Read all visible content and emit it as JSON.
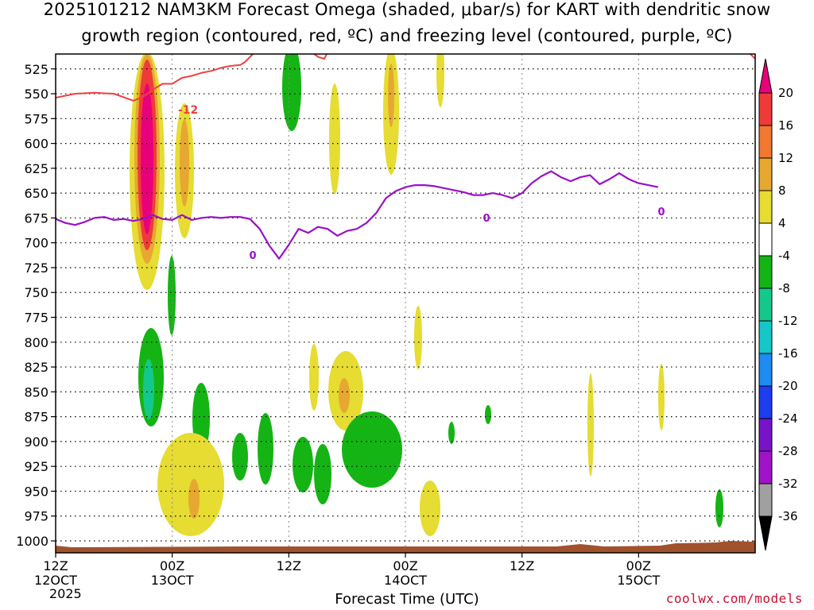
{
  "title_line1": "2025101212 NAM3KM Forecast Omega (shaded, μbar/s) for KART with dendritic snow",
  "title_line2": "growth region (contoured, red, ºC) and freezing level (contoured, purple, ºC)",
  "xlabel": "Forecast Time (UTC)",
  "credit": "coolwx.com/models",
  "year_label": "2025",
  "chart_data": {
    "type": "contour-time-height",
    "title": "2025101212 NAM3KM Forecast Omega (shaded, μbar/s) for KART with dendritic snow growth region (contoured, red, ºC) and freezing level (contoured, purple, ºC)",
    "xlabel": "Forecast Time (UTC)",
    "ylabel": "",
    "x_range_hours": [
      0,
      72
    ],
    "y_range_mb": [
      1012,
      510
    ],
    "y_ticks": [
      525,
      550,
      575,
      600,
      625,
      650,
      675,
      700,
      725,
      750,
      775,
      800,
      825,
      850,
      875,
      900,
      925,
      950,
      975,
      1000
    ],
    "x_ticks": [
      {
        "hour": 0,
        "line1": "12Z",
        "line2": "12OCT"
      },
      {
        "hour": 12,
        "line1": "00Z",
        "line2": "13OCT"
      },
      {
        "hour": 24,
        "line1": "12Z",
        "line2": ""
      },
      {
        "hour": 36,
        "line1": "00Z",
        "line2": "14OCT"
      },
      {
        "hour": 48,
        "line1": "12Z",
        "line2": ""
      },
      {
        "hour": 60,
        "line1": "00Z",
        "line2": "15OCT"
      }
    ],
    "colorbar": {
      "labels": [
        "20",
        "16",
        "12",
        "8",
        "4",
        "-4",
        "-8",
        "-12",
        "-16",
        "-20",
        "-24",
        "-28",
        "-32",
        "-36"
      ],
      "colors": [
        "#e8007a",
        "#f03a3a",
        "#f07830",
        "#e6a830",
        "#e6dc32",
        "#ffffff",
        "#14b414",
        "#14c88c",
        "#14c8c8",
        "#1e8cf0",
        "#1e3cf0",
        "#7814c8",
        "#a014c8",
        "#a0a0a0",
        "#000000"
      ]
    },
    "contour_labels": {
      "red": "-12",
      "purple": "0"
    },
    "freezing_level": [
      [
        0,
        676
      ],
      [
        1,
        680
      ],
      [
        2,
        682
      ],
      [
        3,
        679
      ],
      [
        4,
        675
      ],
      [
        5,
        674
      ],
      [
        6,
        677
      ],
      [
        7,
        676
      ],
      [
        8,
        678
      ],
      [
        9,
        676
      ],
      [
        10,
        672
      ],
      [
        11,
        676
      ],
      [
        12,
        677
      ],
      [
        13,
        672
      ],
      [
        14,
        677
      ],
      [
        15,
        675
      ],
      [
        16,
        674
      ],
      [
        17,
        675
      ],
      [
        18,
        674
      ],
      [
        19,
        674
      ],
      [
        20,
        676
      ],
      [
        21,
        686
      ],
      [
        22,
        703
      ],
      [
        23,
        716
      ],
      [
        24,
        702
      ],
      [
        25,
        686
      ],
      [
        26,
        690
      ],
      [
        27,
        684
      ],
      [
        28,
        686
      ],
      [
        29,
        693
      ],
      [
        30,
        688
      ],
      [
        31,
        686
      ],
      [
        32,
        680
      ],
      [
        33,
        670
      ],
      [
        34,
        655
      ],
      [
        35,
        648
      ],
      [
        36,
        644
      ],
      [
        37,
        642
      ],
      [
        38,
        642
      ],
      [
        39,
        643
      ],
      [
        40,
        645
      ],
      [
        41,
        647
      ],
      [
        42,
        649
      ],
      [
        43,
        652
      ],
      [
        44,
        652
      ],
      [
        45,
        650
      ],
      [
        46,
        652
      ],
      [
        47,
        655
      ],
      [
        48,
        650
      ],
      [
        49,
        640
      ],
      [
        50,
        633
      ],
      [
        51,
        628
      ],
      [
        52,
        634
      ],
      [
        53,
        638
      ],
      [
        54,
        634
      ],
      [
        55,
        632
      ],
      [
        56,
        641
      ],
      [
        57,
        636
      ],
      [
        58,
        630
      ],
      [
        59,
        636
      ],
      [
        60,
        640
      ],
      [
        61,
        642
      ],
      [
        62,
        644
      ]
    ],
    "dgz_minus12": [
      [
        0,
        554
      ],
      [
        2,
        550
      ],
      [
        4,
        549
      ],
      [
        6,
        550
      ],
      [
        8,
        557
      ],
      [
        9,
        553
      ],
      [
        10,
        546
      ],
      [
        11,
        540
      ],
      [
        12,
        540
      ],
      [
        13,
        534
      ],
      [
        14,
        532
      ],
      [
        15,
        529
      ],
      [
        16,
        527
      ],
      [
        17,
        524
      ],
      [
        18,
        522
      ],
      [
        19,
        521
      ],
      [
        19.5,
        518
      ],
      [
        20.5,
        508
      ]
    ]
  }
}
